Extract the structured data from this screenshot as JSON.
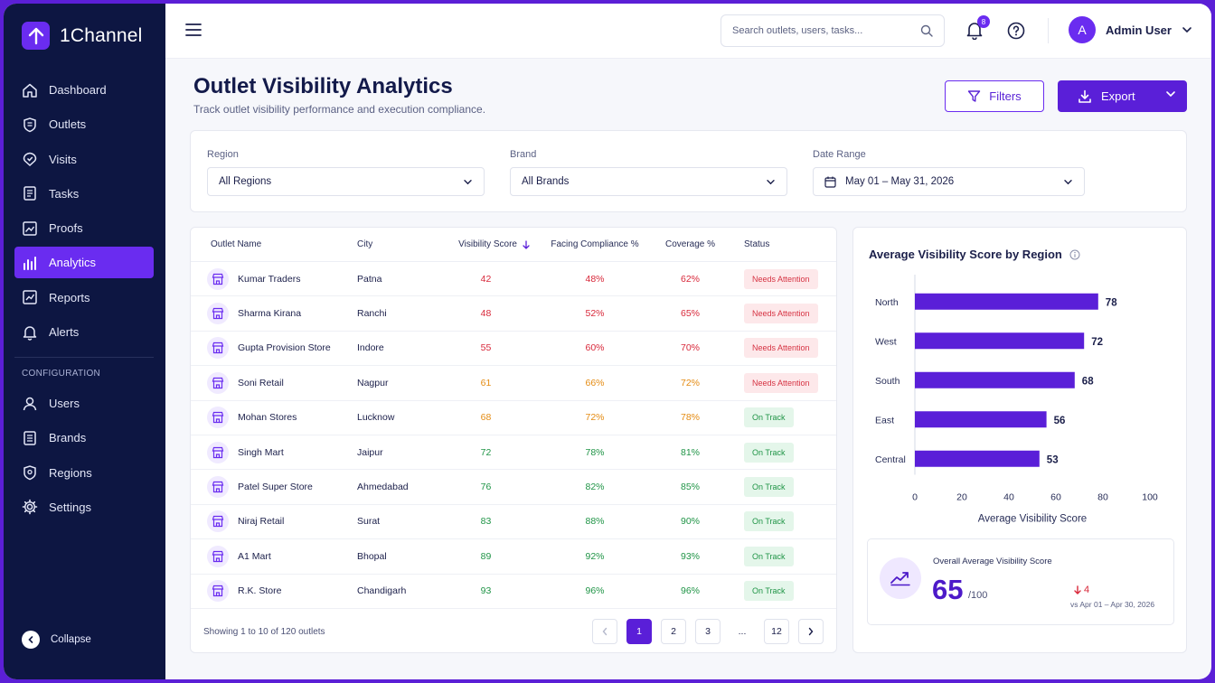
{
  "app": {
    "name": "1Channel"
  },
  "sidebar": {
    "items": [
      {
        "label": "Dashboard",
        "icon": "home-icon",
        "active": false
      },
      {
        "label": "Outlets",
        "icon": "outlet-icon",
        "active": false
      },
      {
        "label": "Visits",
        "icon": "visit-icon",
        "active": false
      },
      {
        "label": "Tasks",
        "icon": "tasks-icon",
        "active": false
      },
      {
        "label": "Proofs",
        "icon": "proofs-icon",
        "active": false
      },
      {
        "label": "Analytics",
        "icon": "analytics-icon",
        "active": true
      },
      {
        "label": "Reports",
        "icon": "reports-icon",
        "active": false
      },
      {
        "label": "Alerts",
        "icon": "bell-icon",
        "active": false
      }
    ],
    "config_section": "CONFIGURATION",
    "config_items": [
      {
        "label": "Users",
        "icon": "users-icon"
      },
      {
        "label": "Brands",
        "icon": "brands-icon"
      },
      {
        "label": "Regions",
        "icon": "regions-icon"
      },
      {
        "label": "Settings",
        "icon": "gear-icon"
      }
    ],
    "collapse_label": "Collapse"
  },
  "topbar": {
    "search_placeholder": "Search outlets, users, tasks...",
    "notification_count": "8",
    "user_initial": "A",
    "user_name": "Admin User"
  },
  "page": {
    "title": "Outlet Visibility Analytics",
    "subtitle": "Track outlet visibility performance and execution compliance.",
    "filters_button": "Filters",
    "export_button": "Export"
  },
  "filters": {
    "region": {
      "label": "Region",
      "value": "All Regions"
    },
    "brand": {
      "label": "Brand",
      "value": "All Brands"
    },
    "date_range": {
      "label": "Date Range",
      "value": "May 01 – May 31, 2026"
    }
  },
  "table": {
    "headers": {
      "name": "Outlet Name",
      "city": "City",
      "score": "Visibility Score",
      "facing": "Facing Compliance %",
      "coverage": "Coverage %",
      "status": "Status"
    },
    "rows": [
      {
        "name": "Kumar Traders",
        "city": "Patna",
        "score": "42",
        "facing": "48%",
        "coverage": "62%",
        "status": "Needs Attention",
        "tone": "red",
        "status_type": "attn"
      },
      {
        "name": "Sharma Kirana",
        "city": "Ranchi",
        "score": "48",
        "facing": "52%",
        "coverage": "65%",
        "status": "Needs Attention",
        "tone": "red",
        "status_type": "attn"
      },
      {
        "name": "Gupta Provision Store",
        "city": "Indore",
        "score": "55",
        "facing": "60%",
        "coverage": "70%",
        "status": "Needs Attention",
        "tone": "red",
        "status_type": "attn"
      },
      {
        "name": "Soni Retail",
        "city": "Nagpur",
        "score": "61",
        "facing": "66%",
        "coverage": "72%",
        "status": "Needs Attention",
        "tone": "orange",
        "status_type": "attn"
      },
      {
        "name": "Mohan Stores",
        "city": "Lucknow",
        "score": "68",
        "facing": "72%",
        "coverage": "78%",
        "status": "On Track",
        "tone": "orange",
        "status_type": "ok"
      },
      {
        "name": "Singh Mart",
        "city": "Jaipur",
        "score": "72",
        "facing": "78%",
        "coverage": "81%",
        "status": "On Track",
        "tone": "green",
        "status_type": "ok"
      },
      {
        "name": "Patel Super Store",
        "city": "Ahmedabad",
        "score": "76",
        "facing": "82%",
        "coverage": "85%",
        "status": "On Track",
        "tone": "green",
        "status_type": "ok"
      },
      {
        "name": "Niraj Retail",
        "city": "Surat",
        "score": "83",
        "facing": "88%",
        "coverage": "90%",
        "status": "On Track",
        "tone": "green",
        "status_type": "ok"
      },
      {
        "name": "A1 Mart",
        "city": "Bhopal",
        "score": "89",
        "facing": "92%",
        "coverage": "93%",
        "status": "On Track",
        "tone": "green",
        "status_type": "ok"
      },
      {
        "name": "R.K. Store",
        "city": "Chandigarh",
        "score": "93",
        "facing": "96%",
        "coverage": "96%",
        "status": "On Track",
        "tone": "green",
        "status_type": "ok"
      }
    ],
    "footer_text": "Showing 1 to 10 of 120 outlets",
    "pages": [
      "1",
      "2",
      "3",
      "...",
      "12"
    ],
    "current_page": "1"
  },
  "chart_data": {
    "type": "bar",
    "orientation": "horizontal",
    "title": "Average Visibility Score by Region",
    "categories": [
      "North",
      "West",
      "South",
      "East",
      "Central"
    ],
    "values": [
      78,
      72,
      68,
      56,
      53
    ],
    "xlabel": "Average Visibility Score",
    "xticks": [
      0,
      20,
      40,
      60,
      80,
      100
    ],
    "xlim": [
      0,
      100
    ],
    "bar_color": "#5a1fd8"
  },
  "kpi": {
    "label": "Overall Average Visibility Score",
    "value": "65",
    "unit": "/100",
    "delta": "4",
    "compare": "vs Apr 01 – Apr 30, 2026"
  },
  "colors": {
    "accent": "#5a1fd8",
    "sidebar_bg": "#0d1642",
    "danger": "#d8283a",
    "warning": "#e48b12",
    "success": "#1f9446"
  }
}
